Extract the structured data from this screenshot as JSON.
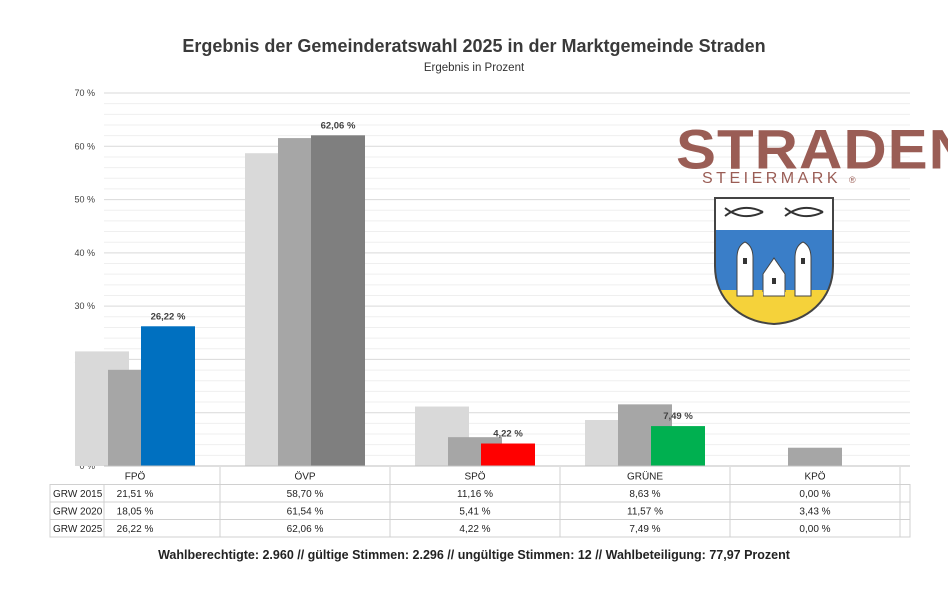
{
  "title": "Ergebnis der Gemeinderatswahl 2025 in der Marktgemeinde Straden",
  "subtitle": "Ergebnis in Prozent",
  "footer": "Wahlberechtigte: 2.960  //  gültige Stimmen: 2.296  //  ungültige Stimmen: 12  //  Wahlbeteiligung: 77,97 Prozent",
  "logo": {
    "word": "STRADEN",
    "sub": "STEIERMARK",
    "mark": "®"
  },
  "chart_data": {
    "type": "bar",
    "title": "Ergebnis der Gemeinderatswahl 2025 in der Marktgemeinde Straden",
    "subtitle": "Ergebnis in Prozent",
    "categories": [
      "FPÖ",
      "ÖVP",
      "SPÖ",
      "GRÜNE",
      "KPÖ"
    ],
    "series": [
      {
        "name": "GRW 2015",
        "values": [
          21.51,
          58.7,
          11.16,
          8.63,
          0.0
        ],
        "labels": [
          "21,51 %",
          "58,70 %",
          "11,16 %",
          "8,63 %",
          "0,00 %"
        ]
      },
      {
        "name": "GRW 2020",
        "values": [
          18.05,
          61.54,
          5.41,
          11.57,
          3.43
        ],
        "labels": [
          "18,05 %",
          "61,54 %",
          "5,41 %",
          "11,57 %",
          "3,43 %"
        ]
      },
      {
        "name": "GRW 2025",
        "values": [
          26.22,
          62.06,
          4.22,
          7.49,
          0.0
        ],
        "labels": [
          "26,22 %",
          "62,06 %",
          "4,22 %",
          "7,49 %",
          "0,00 %"
        ]
      }
    ],
    "data_labels_2025": [
      "26,22 %",
      "62,06 %",
      "4,22 %",
      "7,49 %",
      ""
    ],
    "colors": {
      "GRW 2015": "#d9d9d9",
      "GRW 2020": "#a6a6a6",
      "GRW 2025": [
        "#0070c0",
        "#7f7f7f",
        "#ff0000",
        "#00b050",
        "#7f7f7f"
      ]
    },
    "yticks": [
      "0 %",
      "10 %",
      "20 %",
      "30 %",
      "40 %",
      "50 %",
      "60 %",
      "70 %"
    ],
    "ylim": [
      0,
      70
    ],
    "grid": true,
    "legend": "data table below chart"
  }
}
